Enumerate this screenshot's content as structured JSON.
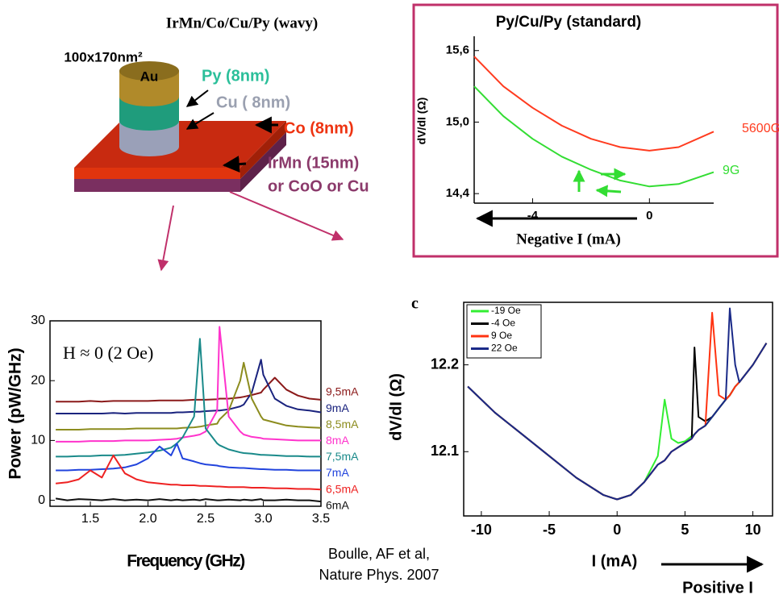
{
  "diagram": {
    "title": "IrMn/Co/Cu/Py (wavy)",
    "size": "100x170nm²",
    "au": "Au",
    "py": "Py (8nm)",
    "cu": "Cu ( 8nm)",
    "co": "Co (8nm)",
    "irmn": "IrMn (15nm)",
    "alt": "or CoO or Cu"
  },
  "caption": [
    "Boulle, AF et al,",
    "Nature Phys. 2007"
  ],
  "chart_data": [
    {
      "type": "line",
      "title": "Py/Cu/Py (standard)",
      "x_label": "Negative I (mA)",
      "y_label": "dV/dI (Ω)",
      "x": [
        -6,
        -5,
        -4,
        -3,
        -2,
        -1,
        0,
        1,
        2.2
      ],
      "series": [
        {
          "name": "5600G",
          "color": "#ff3b1f",
          "values": [
            15.55,
            15.3,
            15.12,
            14.97,
            14.86,
            14.79,
            14.76,
            14.79,
            14.92
          ]
        },
        {
          "name": "9G",
          "color": "#33dd33",
          "values": [
            15.3,
            15.05,
            14.86,
            14.71,
            14.6,
            14.51,
            14.46,
            14.48,
            14.58
          ]
        }
      ],
      "xlim": [
        -6,
        2.2
      ],
      "ylim": [
        14.32,
        15.72
      ],
      "xticks": [
        -4,
        0
      ],
      "yticks": [
        {
          "value": 14.4,
          "label": "14,4"
        },
        {
          "value": 15.0,
          "label": "15,0"
        },
        {
          "value": 15.6,
          "label": "15,6"
        }
      ]
    },
    {
      "type": "line",
      "x_label": "Frequency (GHz)",
      "y_label": "Power (pW/GHz)",
      "annotation": "H ≈ 0 (2 Oe)",
      "x": [
        1.2,
        1.3,
        1.4,
        1.5,
        1.6,
        1.7,
        1.8,
        1.9,
        2.0,
        2.1,
        2.2,
        2.25,
        2.3,
        2.4,
        2.45,
        2.5,
        2.6,
        2.62,
        2.7,
        2.8,
        2.83,
        2.9,
        2.98,
        3.0,
        3.1,
        3.2,
        3.3,
        3.4,
        3.5
      ],
      "series": [
        {
          "name": "9,5mA",
          "color": "#8b1a1a",
          "values": [
            16.5,
            16.5,
            16.5,
            16.6,
            16.5,
            16.6,
            16.6,
            16.6,
            16.6,
            16.7,
            16.7,
            16.7,
            16.7,
            16.8,
            16.8,
            16.8,
            16.9,
            17,
            17,
            17.2,
            17.3,
            17.6,
            18,
            18.5,
            20.5,
            18.5,
            17.5,
            17,
            16.8
          ]
        },
        {
          "name": "9mA",
          "color": "#1a237e",
          "values": [
            14.5,
            14.5,
            14.5,
            14.5,
            14.5,
            14.6,
            14.5,
            14.6,
            14.6,
            14.6,
            14.6,
            14.7,
            14.7,
            14.8,
            14.8,
            14.9,
            15,
            15,
            15.2,
            15.7,
            16,
            18,
            23.5,
            21,
            17,
            15.8,
            15.2,
            15,
            14.7
          ]
        },
        {
          "name": "8,5mA",
          "color": "#8c8c1e",
          "values": [
            11.8,
            11.8,
            11.8,
            11.9,
            11.9,
            11.9,
            11.9,
            12,
            12,
            12,
            12,
            12,
            12.1,
            12.2,
            12.3,
            12.5,
            12.8,
            13.5,
            15,
            20,
            23,
            17,
            14,
            13.5,
            13,
            12.5,
            12.3,
            12.2,
            12.1
          ]
        },
        {
          "name": "8mA",
          "color": "#ff33cc",
          "values": [
            9.8,
            9.8,
            9.8,
            9.9,
            9.9,
            9.9,
            10,
            10,
            10,
            10.1,
            10.2,
            10.3,
            10.5,
            10.8,
            11,
            11.5,
            15,
            29,
            14,
            11.5,
            11,
            10.6,
            10.4,
            10.3,
            10.2,
            10.1,
            10,
            10,
            10
          ]
        },
        {
          "name": "7,5mA",
          "color": "#1a8a8a",
          "values": [
            7.3,
            7.3,
            7.4,
            7.4,
            7.5,
            7.5,
            7.6,
            7.8,
            8,
            8.3,
            8.8,
            9.5,
            10.5,
            14,
            27,
            12,
            9.5,
            9.2,
            8.5,
            8,
            7.9,
            7.8,
            7.6,
            7.6,
            7.5,
            7.4,
            7.4,
            7.3,
            7.3
          ]
        },
        {
          "name": "7mA",
          "color": "#2244dd",
          "values": [
            5,
            5,
            5.1,
            5.1,
            5.2,
            5.3,
            5.5,
            6,
            7,
            9,
            7.5,
            9.5,
            7,
            6.5,
            6.2,
            6,
            5.8,
            5.7,
            5.5,
            5.4,
            5.4,
            5.3,
            5.2,
            5.2,
            5.1,
            5.1,
            5,
            5,
            5
          ]
        },
        {
          "name": "6,5mA",
          "color": "#ee2222",
          "values": [
            2.8,
            3,
            3.5,
            5,
            3.8,
            7.5,
            4.5,
            3.5,
            3,
            2.8,
            2.6,
            2.6,
            2.5,
            2.5,
            2.4,
            2.4,
            2.3,
            2.3,
            2.2,
            2.2,
            2.2,
            2.1,
            2.1,
            2.1,
            2,
            2,
            1.9,
            1.9,
            1.8
          ]
        },
        {
          "name": "6mA",
          "color": "#111111",
          "values": [
            0.3,
            0,
            0.2,
            0.1,
            0,
            0.2,
            0,
            0.1,
            0,
            0.2,
            0,
            0.1,
            0,
            0.1,
            0,
            0.2,
            0,
            0,
            0.1,
            0,
            0.1,
            0,
            0.2,
            0,
            0,
            0.1,
            0,
            0,
            -0.2
          ]
        }
      ],
      "xlim": [
        1.15,
        3.5
      ],
      "ylim": [
        -1,
        30
      ],
      "xticks": [
        1.5,
        {
          "value": 2,
          "label": "2.0"
        },
        2.5,
        {
          "value": 3,
          "label": "3.0"
        },
        3.5
      ],
      "yticks": [
        0,
        10,
        20,
        30
      ]
    },
    {
      "type": "line",
      "panel_label": "c",
      "x_label": "I (mA)",
      "annotation": "Positive I",
      "y_label": "dV/dI (Ω)",
      "x": [
        -11,
        -9,
        -7,
        -5,
        -3,
        -1,
        0,
        1,
        2,
        3,
        3.5,
        4,
        4.5,
        5,
        5.5,
        5.7,
        6,
        6.5,
        7,
        7.5,
        8,
        8.3,
        8.7,
        9,
        10,
        11
      ],
      "series": [
        {
          "name": "-19 Oe",
          "color": "#33ee33",
          "values": [
            12.175,
            12.145,
            12.12,
            12.095,
            12.07,
            12.05,
            12.045,
            12.05,
            12.065,
            12.095,
            12.16,
            12.115,
            12.11,
            12.112,
            12.118,
            12.12,
            12.125,
            12.13,
            12.14,
            12.15,
            12.16,
            12.165,
            12.175,
            12.18,
            12.2,
            12.225
          ]
        },
        {
          "name": "-4 Oe",
          "color": "#000000",
          "values": [
            12.175,
            12.145,
            12.12,
            12.095,
            12.07,
            12.05,
            12.045,
            12.05,
            12.065,
            12.085,
            12.09,
            12.1,
            12.105,
            12.11,
            12.115,
            12.22,
            12.14,
            12.135,
            12.14,
            12.15,
            12.16,
            12.165,
            12.175,
            12.18,
            12.2,
            12.225
          ]
        },
        {
          "name": "9 Oe",
          "color": "#ff3311",
          "values": [
            12.175,
            12.145,
            12.12,
            12.095,
            12.07,
            12.05,
            12.045,
            12.05,
            12.065,
            12.085,
            12.09,
            12.1,
            12.105,
            12.11,
            12.115,
            12.12,
            12.125,
            12.13,
            12.26,
            12.165,
            12.16,
            12.165,
            12.175,
            12.18,
            12.2,
            12.225
          ]
        },
        {
          "name": "22 Oe",
          "color": "#1a2a88",
          "values": [
            12.175,
            12.145,
            12.12,
            12.095,
            12.07,
            12.05,
            12.045,
            12.05,
            12.065,
            12.085,
            12.09,
            12.1,
            12.105,
            12.11,
            12.115,
            12.12,
            12.125,
            12.13,
            12.14,
            12.15,
            12.16,
            12.265,
            12.2,
            12.18,
            12.2,
            12.225
          ]
        }
      ],
      "xlim": [
        -11.3,
        11.45
      ],
      "ylim": [
        12.026,
        12.272
      ],
      "xticks": [
        -10,
        -5,
        0,
        5,
        10
      ],
      "yticks": [
        12.1,
        12.2
      ]
    }
  ]
}
